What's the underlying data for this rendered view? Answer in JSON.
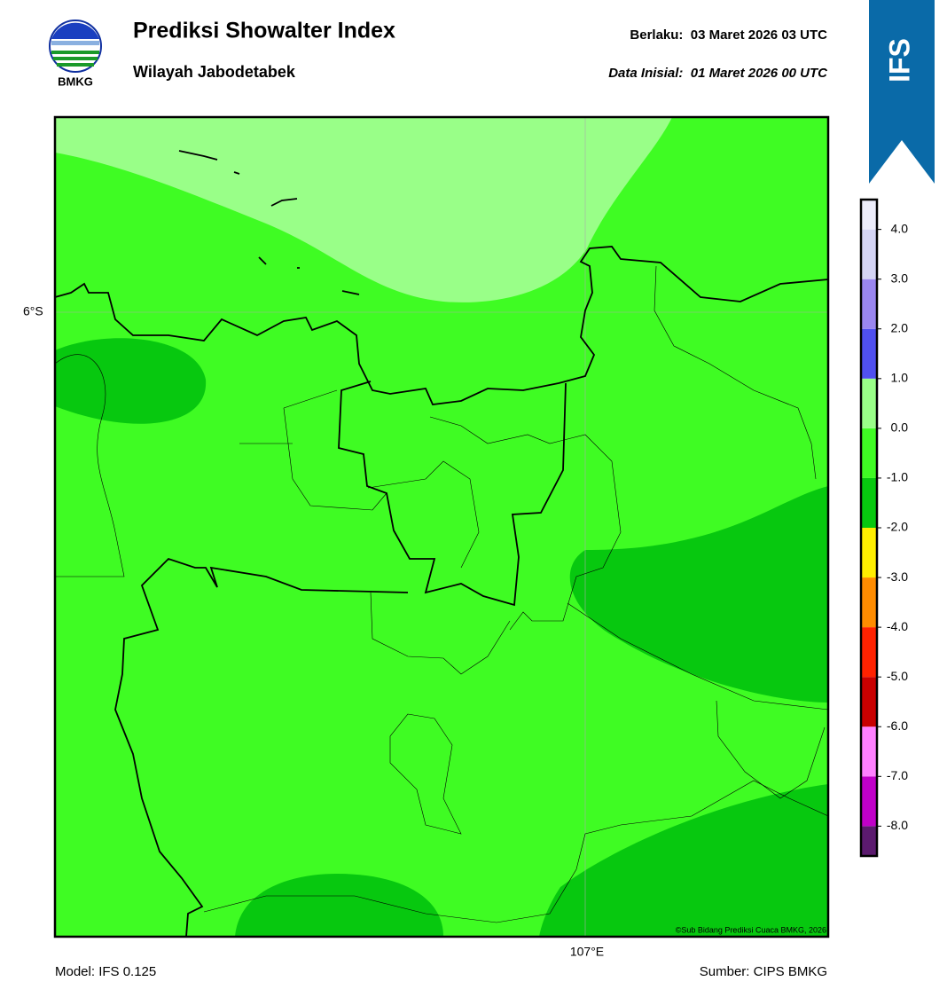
{
  "header": {
    "logo_text": "BMKG",
    "title": "Prediksi Showalter Index",
    "subtitle": "Wilayah Jabodetabek",
    "valid": "Berlaku:  03 Maret 2026 03 UTC",
    "initial": "Data Inisial:  01 Maret 2026 00 UTC",
    "badge": "IFS"
  },
  "map": {
    "lat_label": "6°S",
    "lon_label": "107°E",
    "credit": "©Sub Bidang Prediksi Cuaca BMKG, 2026"
  },
  "colorbar": {
    "lim": [
      -8.6,
      4.6
    ],
    "bounds": [
      -8.6,
      -8,
      -7,
      -6,
      -5,
      -4,
      -3,
      -2,
      -1,
      0,
      1,
      2,
      3,
      4,
      4.6
    ],
    "colors": [
      "#5b1a6e",
      "#c000c8",
      "#ff80ff",
      "#c80000",
      "#ff2200",
      "#ff8c00",
      "#ffee00",
      "#07c80f",
      "#3ffc23",
      "#99ff88",
      "#5050f0",
      "#9a86f0",
      "#d4d4f4",
      "#ececfa"
    ],
    "ticks": [
      {
        "value": 4,
        "label": "4.0"
      },
      {
        "value": 3,
        "label": "3.0"
      },
      {
        "value": 2,
        "label": "2.0"
      },
      {
        "value": 1,
        "label": "1.0"
      },
      {
        "value": 0,
        "label": "0.0"
      },
      {
        "value": -1,
        "label": "-1.0"
      },
      {
        "value": -2,
        "label": "-2.0"
      },
      {
        "value": -3,
        "label": "-3.0"
      },
      {
        "value": -4,
        "label": "-4.0"
      },
      {
        "value": -5,
        "label": "-5.0"
      },
      {
        "value": -6,
        "label": "-6.0"
      },
      {
        "value": -7,
        "label": "-7.0"
      },
      {
        "value": -8,
        "label": "-8.0"
      }
    ]
  },
  "footer": {
    "model": "Model: IFS 0.125",
    "source": "Sumber: CIPS BMKG"
  }
}
